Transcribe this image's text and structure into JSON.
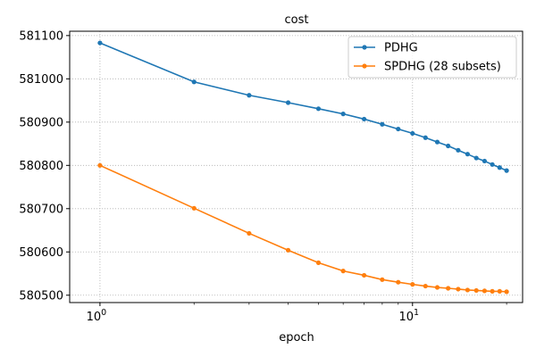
{
  "chart_data": {
    "type": "line",
    "title": "cost",
    "xlabel": "epoch",
    "ylabel": "",
    "xscale": "log",
    "xlim": [
      0.8,
      22.5
    ],
    "ylim": [
      580483,
      581110
    ],
    "grid": true,
    "grid_style": "dotted",
    "legend_position": "top-right",
    "x_ticks": [
      {
        "value": 1,
        "base": "10",
        "exp": "0"
      },
      {
        "value": 10,
        "base": "10",
        "exp": "1"
      }
    ],
    "y_ticks": [
      {
        "value": 580500,
        "label": "580500"
      },
      {
        "value": 580600,
        "label": "580600"
      },
      {
        "value": 580700,
        "label": "580700"
      },
      {
        "value": 580800,
        "label": "580800"
      },
      {
        "value": 580900,
        "label": "580900"
      },
      {
        "value": 581000,
        "label": "581000"
      },
      {
        "value": 581100,
        "label": "581100"
      }
    ],
    "x": [
      1,
      2,
      3,
      4,
      5,
      6,
      7,
      8,
      9,
      10,
      11,
      12,
      13,
      14,
      15,
      16,
      17,
      18,
      19,
      20
    ],
    "series": [
      {
        "name": "PDHG",
        "color": "#1f77b4",
        "values": [
          581083,
          580993,
          580962,
          580945,
          580931,
          580919,
          580907,
          580895,
          580884,
          580874,
          580864,
          580854,
          580845,
          580835,
          580826,
          580817,
          580810,
          580802,
          580795,
          580788
        ]
      },
      {
        "name": "SPDHG (28 subsets)",
        "color": "#ff7f0e",
        "values": [
          580800,
          580701,
          580643,
          580604,
          580575,
          580556,
          580546,
          580536,
          580530,
          580525,
          580521,
          580518,
          580516,
          580514,
          580512,
          580511,
          580510,
          580509,
          580509,
          580508
        ]
      }
    ]
  }
}
